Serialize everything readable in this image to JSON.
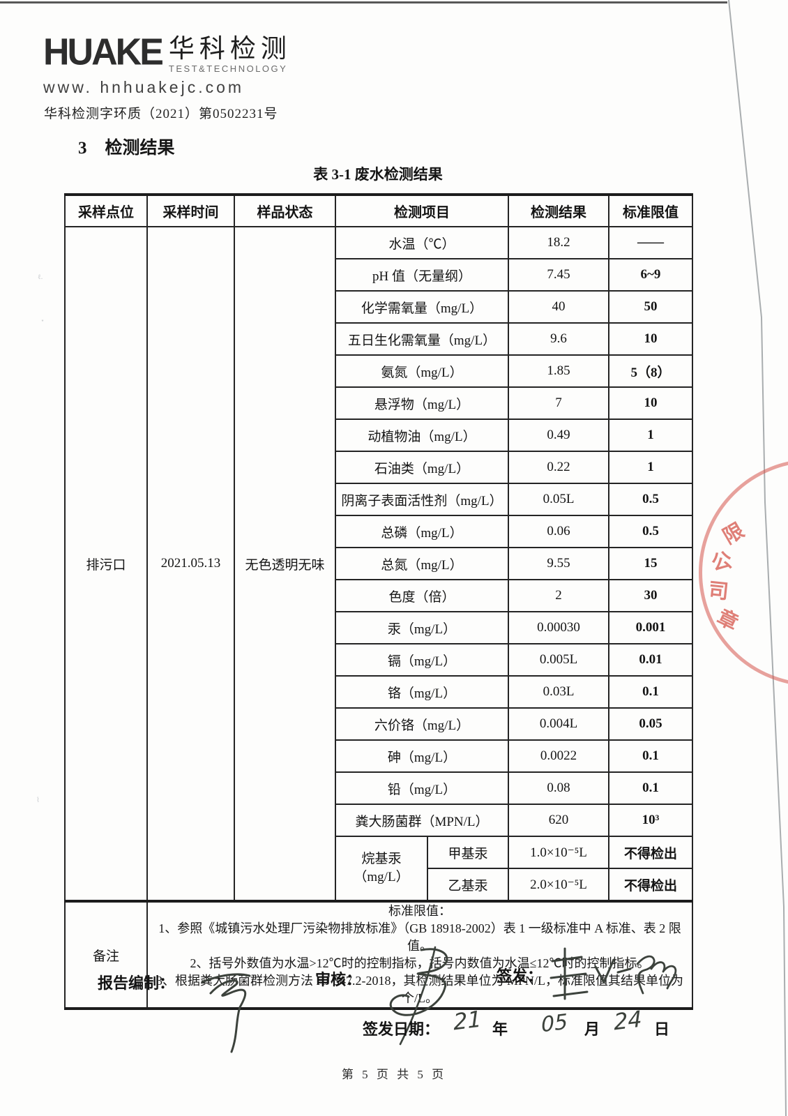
{
  "header": {
    "logo_text": "HUAKE",
    "logo_cn": "华科检测",
    "logo_sub": "TEST&TECHNOLOGY",
    "website": "www. hnhuakejc.com",
    "doc_number": "华科检测字环质（2021）第0502231号"
  },
  "section": {
    "number": "3",
    "title": "检测结果"
  },
  "table": {
    "caption": "表 3-1  废水检测结果",
    "headers": [
      "采样点位",
      "采样时间",
      "样品状态",
      "检测项目",
      "检测结果",
      "标准限值"
    ],
    "sample": {
      "point": "排污口",
      "time": "2021.05.13",
      "state": "无色透明无味"
    },
    "rows": [
      {
        "item": "水温（℃）",
        "result": "18.2",
        "limit": "——"
      },
      {
        "item": "pH 值（无量纲）",
        "result": "7.45",
        "limit": "6~9"
      },
      {
        "item": "化学需氧量（mg/L）",
        "result": "40",
        "limit": "50"
      },
      {
        "item": "五日生化需氧量（mg/L）",
        "result": "9.6",
        "limit": "10"
      },
      {
        "item": "氨氮（mg/L）",
        "result": "1.85",
        "limit": "5（8）"
      },
      {
        "item": "悬浮物（mg/L）",
        "result": "7",
        "limit": "10"
      },
      {
        "item": "动植物油（mg/L）",
        "result": "0.49",
        "limit": "1"
      },
      {
        "item": "石油类（mg/L）",
        "result": "0.22",
        "limit": "1"
      },
      {
        "item": "阴离子表面活性剂（mg/L）",
        "result": "0.05L",
        "limit": "0.5"
      },
      {
        "item": "总磷（mg/L）",
        "result": "0.06",
        "limit": "0.5"
      },
      {
        "item": "总氮（mg/L）",
        "result": "9.55",
        "limit": "15"
      },
      {
        "item": "色度（倍）",
        "result": "2",
        "limit": "30"
      },
      {
        "item": "汞（mg/L）",
        "result": "0.00030",
        "limit": "0.001"
      },
      {
        "item": "镉（mg/L）",
        "result": "0.005L",
        "limit": "0.01"
      },
      {
        "item": "铬（mg/L）",
        "result": "0.03L",
        "limit": "0.1"
      },
      {
        "item": "六价铬（mg/L）",
        "result": "0.004L",
        "limit": "0.05"
      },
      {
        "item": "砷（mg/L）",
        "result": "0.0022",
        "limit": "0.1"
      },
      {
        "item": "铅（mg/L）",
        "result": "0.08",
        "limit": "0.1"
      },
      {
        "item": "粪大肠菌群（MPN/L）",
        "result": "620",
        "limit": "10³"
      }
    ],
    "alkyl_group": {
      "label_line1": "烷基汞",
      "label_line2": "（mg/L）",
      "rows": [
        {
          "item": "甲基汞",
          "result": "1.0×10⁻⁵L",
          "limit": "不得检出"
        },
        {
          "item": "乙基汞",
          "result": "2.0×10⁻⁵L",
          "limit": "不得检出"
        }
      ]
    },
    "remark": {
      "label": "备注",
      "lines": [
        "标准限值：",
        "1、参照《城镇污水处理厂污染物排放标准》（GB 18918-2002）表 1 一级标准中 A 标准、表 2 限值。",
        "2、括号外数值为水温>12℃时的控制指标，括号内数值为水温≤12℃时的控制指标。",
        "3、根据粪大肠菌群检测方法 HJ 347.2-2018，其检测结果单位为 MPN/L，标准限值其结果单位为个/L。"
      ]
    }
  },
  "signoff": {
    "prepared_label": "报告编制：",
    "review_label": "审核：",
    "issue_label": "签发：",
    "date_label": "签发日期：",
    "date_year": "21",
    "year_char": "年",
    "date_month": "05",
    "month_char": "月",
    "date_day": "24",
    "day_char": "日"
  },
  "footer": {
    "page_info": "第 5 页 共 5 页"
  },
  "stamp": {
    "chars": [
      "限",
      "公",
      "司",
      "章"
    ],
    "color": "#d6564c"
  }
}
